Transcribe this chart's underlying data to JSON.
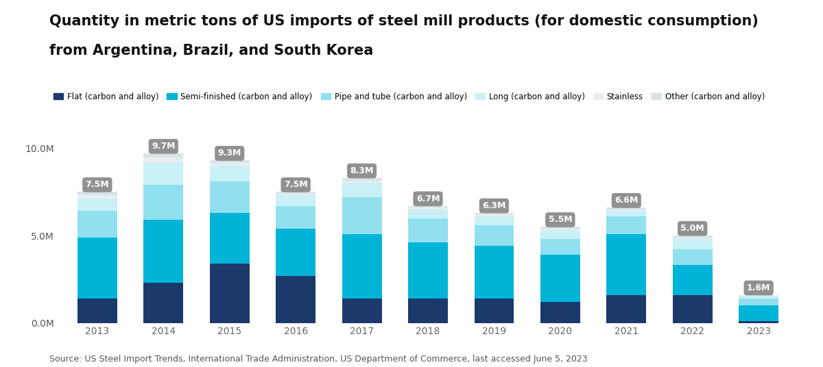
{
  "title_line1": "Quantity in metric tons of US imports of steel mill products (for domestic consumption)",
  "title_line2": "from Argentina, Brazil, and South Korea",
  "source": "Source: US Steel Import Trends, International Trade Administration, US Department of Commerce, last accessed June 5, 2023",
  "years": [
    "2013",
    "2014",
    "2015",
    "2016",
    "2017",
    "2018",
    "2019",
    "2020",
    "2021",
    "2022",
    "2023"
  ],
  "totals": [
    "7.5M",
    "9.7M",
    "9.3M",
    "7.5M",
    "8.3M",
    "6.7M",
    "6.3M",
    "5.5M",
    "6.6M",
    "5.0M",
    "1.6M"
  ],
  "total_values": [
    7500000,
    9700000,
    9300000,
    7500000,
    8300000,
    6700000,
    6300000,
    5500000,
    6600000,
    5000000,
    1600000
  ],
  "categories": [
    "Flat (carbon and alloy)",
    "Semi-finished (carbon and alloy)",
    "Pipe and tube (carbon and alloy)",
    "Long (carbon and alloy)",
    "Stainless",
    "Other (carbon and alloy)"
  ],
  "colors": [
    "#1b3a6b",
    "#00b4d8",
    "#90e0ef",
    "#caf0f8",
    "#ececec",
    "#d6e4ea"
  ],
  "data": {
    "Flat (carbon and alloy)": [
      1400000,
      2300000,
      3400000,
      2700000,
      1400000,
      1400000,
      1400000,
      1200000,
      1600000,
      1600000,
      100000
    ],
    "Semi-finished (carbon and alloy)": [
      3500000,
      3600000,
      2900000,
      2700000,
      3700000,
      3200000,
      3000000,
      2700000,
      3500000,
      1700000,
      900000
    ],
    "Pipe and tube (carbon and alloy)": [
      1500000,
      2000000,
      1800000,
      1300000,
      2100000,
      1400000,
      1200000,
      900000,
      1000000,
      900000,
      400000
    ],
    "Long (carbon and alloy)": [
      700000,
      1300000,
      900000,
      600000,
      800000,
      500000,
      500000,
      500000,
      300000,
      600000,
      150000
    ],
    "Stainless": [
      200000,
      250000,
      150000,
      100000,
      150000,
      100000,
      100000,
      80000,
      100000,
      100000,
      25000
    ],
    "Other (carbon and alloy)": [
      200000,
      250000,
      150000,
      100000,
      150000,
      100000,
      100000,
      120000,
      100000,
      100000,
      25000
    ]
  },
  "background_color": "#ffffff",
  "ylim": [
    0,
    10500000
  ],
  "yticks": [
    0,
    5000000,
    10000000
  ],
  "ytick_labels": [
    "0.0M",
    "5.0M",
    "10.0M"
  ],
  "bar_width": 0.6,
  "title_fontsize": 15,
  "legend_fontsize": 8.5,
  "axis_fontsize": 10,
  "source_fontsize": 9
}
